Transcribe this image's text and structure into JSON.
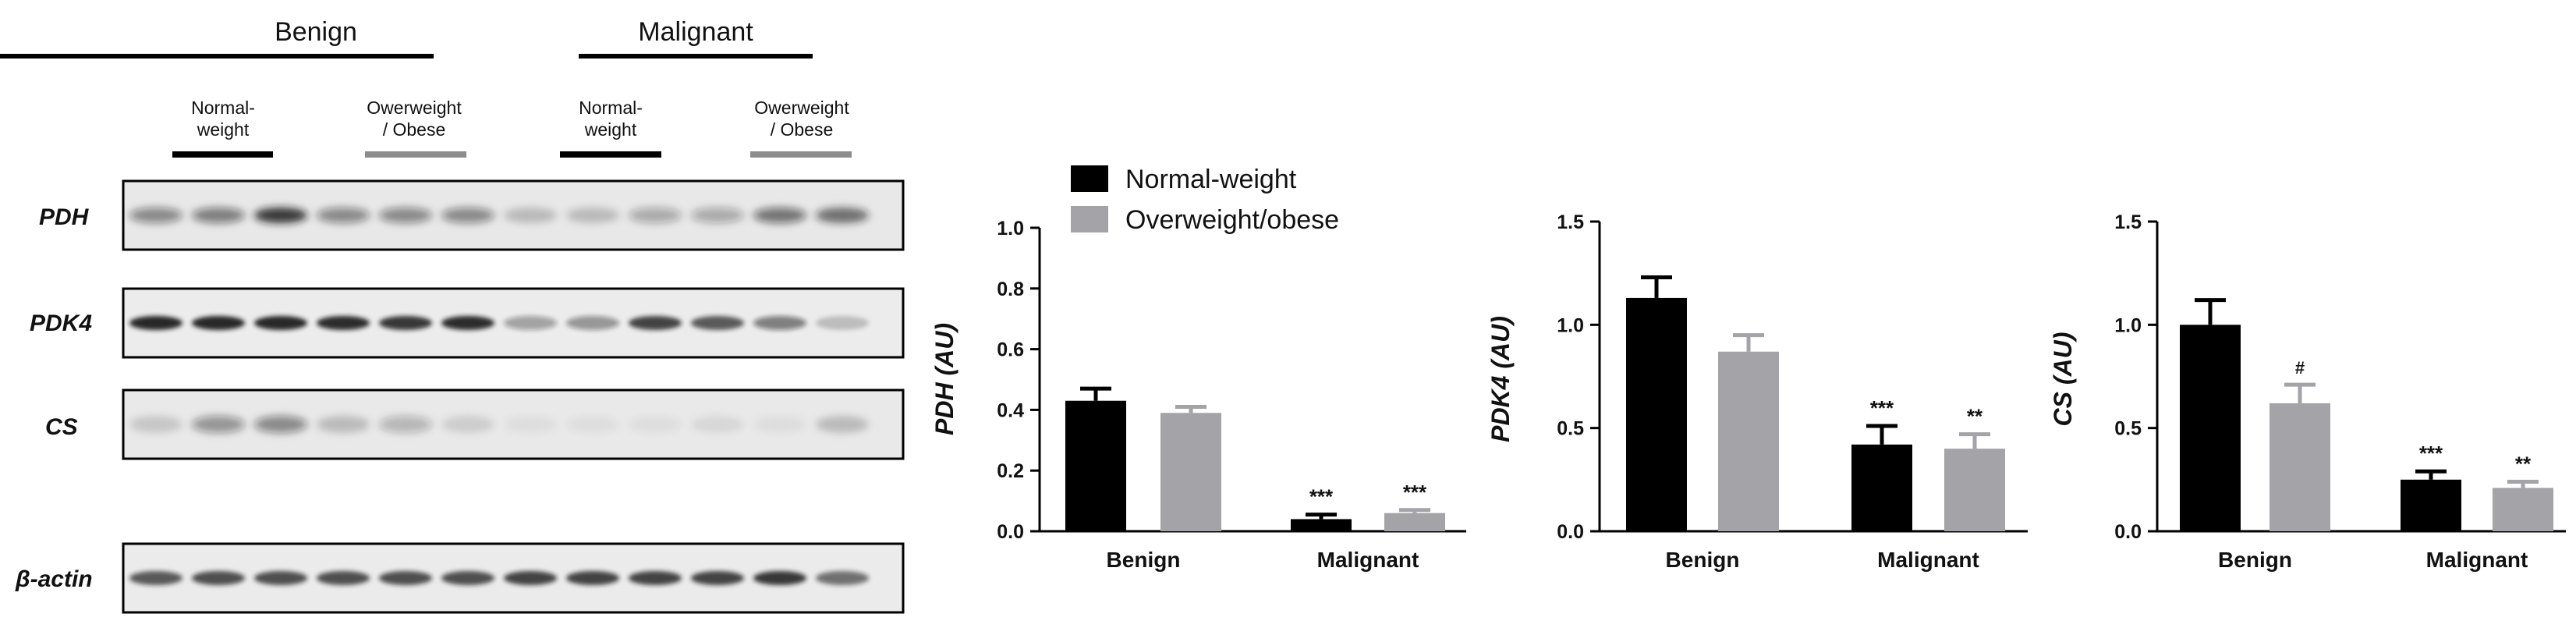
{
  "blot": {
    "groups": [
      {
        "label": "Benign"
      },
      {
        "label": "Malignant"
      }
    ],
    "subgroups": [
      {
        "line1": "Normal-",
        "line2": "weight",
        "color": "#000000"
      },
      {
        "line1": "Owerweight",
        "line2": "/ Obese",
        "color": "#8c8c8c"
      },
      {
        "line1": "Normal-",
        "line2": "weight",
        "color": "#000000"
      },
      {
        "line1": "Owerweight",
        "line2": "/ Obese",
        "color": "#8c8c8c"
      }
    ],
    "rows": [
      {
        "label": "PDH"
      },
      {
        "label": "PDK4"
      },
      {
        "label": "CS"
      },
      {
        "label": "β-actin"
      }
    ]
  },
  "legend": {
    "items": [
      {
        "label": "Normal-weight",
        "color": "#000000"
      },
      {
        "label": "Overweight/obese",
        "color": "#a3a3a8"
      }
    ]
  },
  "chart_data": [
    {
      "type": "bar",
      "title": "",
      "ylabel": "PDH (AU)",
      "xlabel": "",
      "categories": [
        "Benign",
        "Malignant"
      ],
      "ylim": [
        0,
        1.0
      ],
      "yticks": [
        "0.0",
        "0.2",
        "0.4",
        "0.6",
        "0.8",
        "1.0"
      ],
      "series": [
        {
          "name": "Normal-weight",
          "values": [
            0.43,
            0.04
          ],
          "errors": [
            0.04,
            0.015
          ],
          "color": "#000000"
        },
        {
          "name": "Overweight/obese",
          "values": [
            0.39,
            0.06
          ],
          "errors": [
            0.02,
            0.01
          ],
          "color": "#a3a3a8"
        }
      ],
      "annotations": [
        [
          "",
          ""
        ],
        [
          "***",
          "***"
        ]
      ]
    },
    {
      "type": "bar",
      "title": "",
      "ylabel": "PDK4 (AU)",
      "xlabel": "",
      "categories": [
        "Benign",
        "Malignant"
      ],
      "ylim": [
        0,
        1.5
      ],
      "yticks": [
        "0.0",
        "0.5",
        "1.0",
        "1.5"
      ],
      "series": [
        {
          "name": "Normal-weight",
          "values": [
            1.13,
            0.42
          ],
          "errors": [
            0.1,
            0.09
          ],
          "color": "#000000"
        },
        {
          "name": "Overweight/obese",
          "values": [
            0.87,
            0.4
          ],
          "errors": [
            0.08,
            0.07
          ],
          "color": "#a3a3a8"
        }
      ],
      "annotations": [
        [
          "",
          ""
        ],
        [
          "***",
          "**"
        ]
      ]
    },
    {
      "type": "bar",
      "title": "",
      "ylabel": "CS (AU)",
      "xlabel": "",
      "categories": [
        "Benign",
        "Malignant"
      ],
      "ylim": [
        0,
        1.5
      ],
      "yticks": [
        "0.0",
        "0.5",
        "1.0",
        "1.5"
      ],
      "series": [
        {
          "name": "Normal-weight",
          "values": [
            1.0,
            0.25
          ],
          "errors": [
            0.12,
            0.04
          ],
          "color": "#000000"
        },
        {
          "name": "Overweight/obese",
          "values": [
            0.62,
            0.21
          ],
          "errors": [
            0.09,
            0.03
          ],
          "color": "#a3a3a8"
        }
      ],
      "annotations": [
        [
          "",
          "#"
        ],
        [
          "***",
          "**"
        ]
      ]
    }
  ]
}
